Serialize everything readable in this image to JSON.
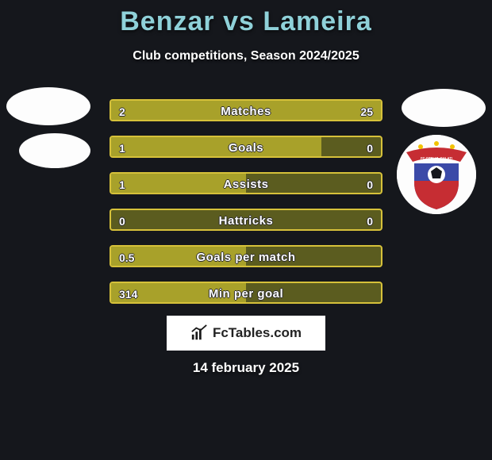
{
  "background_color": "#15171c",
  "title": {
    "text": "Benzar vs Lameira",
    "color": "#8fd1d9",
    "fontsize": 34
  },
  "subtitle": {
    "text": "Club competitions, Season 2024/2025",
    "color": "#ffffff",
    "fontsize": 16
  },
  "avatars": {
    "left_player_bg": "#fdfdfd",
    "left_club_bg": "#fdfdfd",
    "right_player_bg": "#fdfdfd",
    "right_club_bg": "#fdfdfd",
    "right_club_crest": {
      "shield_top": "#3b4aa8",
      "shield_bottom": "#c62d33",
      "banner": "#c62d33",
      "banner_text": "FC OTELUL GALATI",
      "ball_color": "#ffffff",
      "points_color": "#f2c200"
    }
  },
  "bars": {
    "track_color": "#5b5c1f",
    "border_color": "#d6c13a",
    "border_width": 2,
    "fill_color": "#a8a12a",
    "label_color": "#ffffff",
    "label_fontsize": 15,
    "value_color": "#ffffff",
    "value_fontsize": 14,
    "rows": [
      {
        "label": "Matches",
        "left_text": "2",
        "right_text": "25",
        "left_pct": 7,
        "right_pct": 93
      },
      {
        "label": "Goals",
        "left_text": "1",
        "right_text": "0",
        "left_pct": 78,
        "right_pct": 0
      },
      {
        "label": "Assists",
        "left_text": "1",
        "right_text": "0",
        "left_pct": 50,
        "right_pct": 0
      },
      {
        "label": "Hattricks",
        "left_text": "0",
        "right_text": "0",
        "left_pct": 0,
        "right_pct": 0
      },
      {
        "label": "Goals per match",
        "left_text": "0.5",
        "right_text": "",
        "left_pct": 50,
        "right_pct": 0
      },
      {
        "label": "Min per goal",
        "left_text": "314",
        "right_text": "",
        "left_pct": 50,
        "right_pct": 0
      }
    ]
  },
  "watermark": {
    "text": "FcTables.com",
    "bg": "#ffffff",
    "text_color": "#1a1a1a",
    "icon_color": "#1a1a1a"
  },
  "date": {
    "text": "14 february 2025",
    "color": "#ffffff",
    "fontsize": 17
  }
}
